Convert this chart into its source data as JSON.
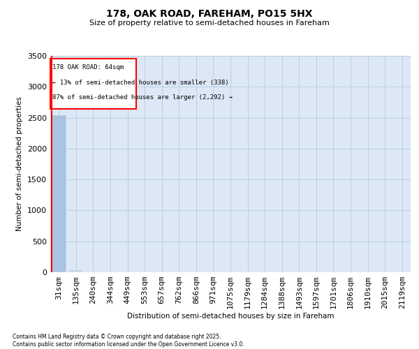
{
  "title": "178, OAK ROAD, FAREHAM, PO15 5HX",
  "subtitle": "Size of property relative to semi-detached houses in Fareham",
  "xlabel": "Distribution of semi-detached houses by size in Fareham",
  "ylabel": "Number of semi-detached properties",
  "categories": [
    "31sqm",
    "135sqm",
    "240sqm",
    "344sqm",
    "449sqm",
    "553sqm",
    "657sqm",
    "762sqm",
    "866sqm",
    "971sqm",
    "1075sqm",
    "1179sqm",
    "1284sqm",
    "1388sqm",
    "1493sqm",
    "1597sqm",
    "1701sqm",
    "1806sqm",
    "1910sqm",
    "2015sqm",
    "2119sqm"
  ],
  "values": [
    2540,
    50,
    15,
    8,
    5,
    3,
    2,
    2,
    1,
    1,
    1,
    1,
    0,
    0,
    0,
    0,
    0,
    0,
    0,
    0,
    0
  ],
  "bar_color_default": "#c5d8ec",
  "bar_color_highlight": "#a8c4e0",
  "highlight_index": 0,
  "ylim": [
    0,
    3500
  ],
  "yticks": [
    0,
    500,
    1000,
    1500,
    2000,
    2500,
    3000,
    3500
  ],
  "annotation_title": "178 OAK ROAD: 64sqm",
  "annotation_line1": "← 13% of semi-detached houses are smaller (338)",
  "annotation_line2": "87% of semi-detached houses are larger (2,292) →",
  "annotation_box_color": "#ff0000",
  "grid_color": "#b8cfe0",
  "bg_color": "#dce8f5",
  "footer_line1": "Contains HM Land Registry data © Crown copyright and database right 2025.",
  "footer_line2": "Contains public sector information licensed under the Open Government Licence v3.0."
}
